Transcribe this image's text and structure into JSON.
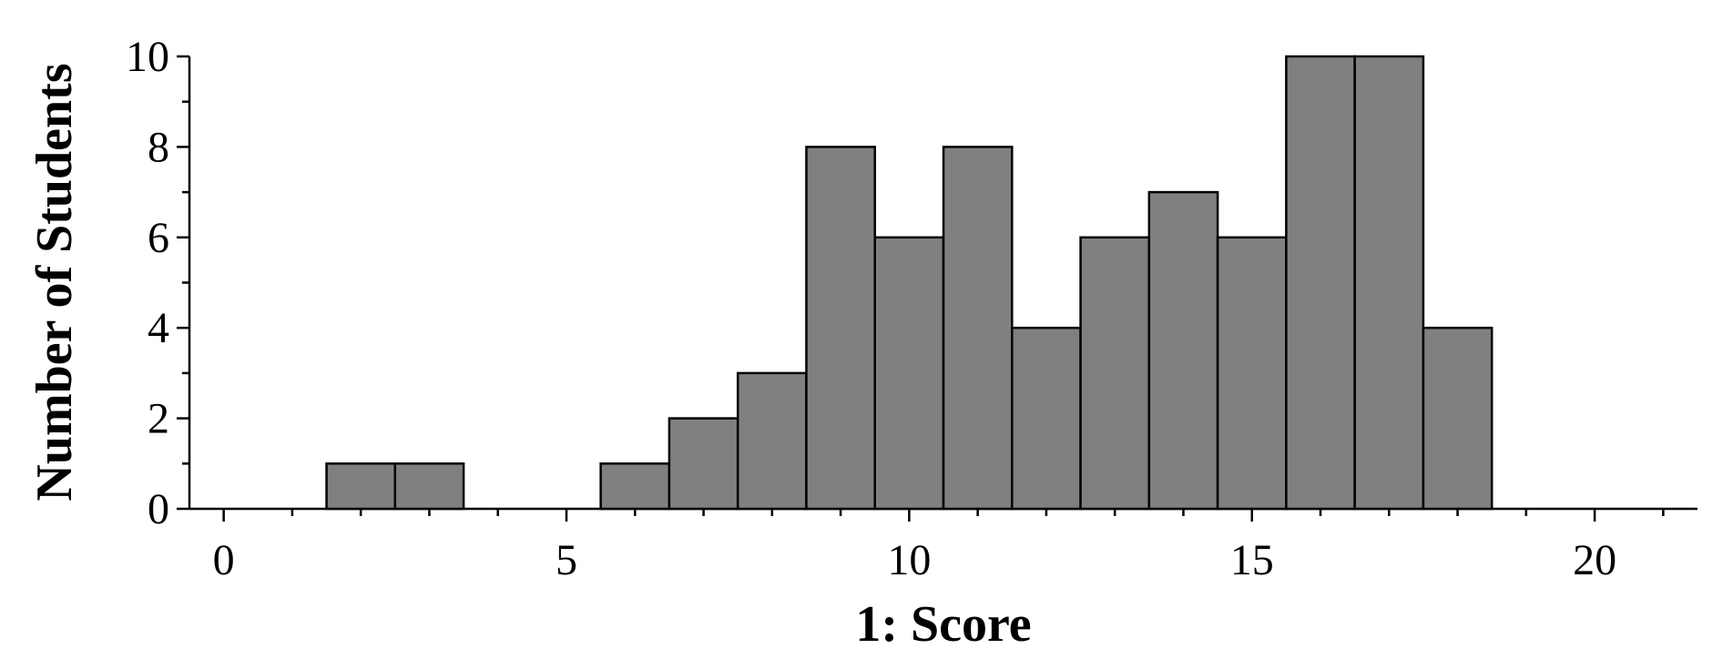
{
  "chart_data": {
    "type": "histogram",
    "x_label": "1: Score",
    "y_label": "Number of Students",
    "bins": [
      -0.5,
      0.5,
      1.5,
      2.5,
      3.5,
      4.5,
      5.5,
      6.5,
      7.5,
      8.5,
      9.5,
      10.5,
      11.5,
      12.5,
      13.5,
      14.5,
      15.5,
      16.5,
      17.5,
      18.5,
      19.5,
      20.5,
      21.5
    ],
    "values": [
      0,
      0,
      1,
      1,
      0,
      0,
      1,
      2,
      3,
      8,
      6,
      8,
      4,
      6,
      7,
      6,
      10,
      10,
      4,
      0,
      0,
      0
    ],
    "color": "#808080",
    "xlim": [
      -0.5,
      21.5
    ],
    "xticks": [
      0,
      5,
      10,
      15,
      20
    ],
    "xminorticks": [
      1,
      2,
      3,
      4,
      6,
      7,
      8,
      9,
      11,
      12,
      13,
      14,
      16,
      17,
      18,
      19,
      21
    ],
    "ylim": [
      0,
      10
    ],
    "yticks": [
      0,
      2,
      4,
      6,
      8,
      10
    ],
    "yminorticks": [
      1,
      3,
      5,
      7,
      9
    ]
  }
}
